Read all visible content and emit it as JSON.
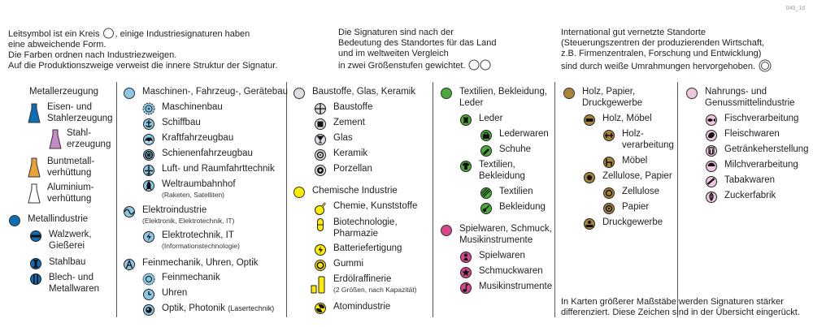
{
  "code": "040_1d",
  "intro": {
    "left": [
      "Leitsymbol ist ein Kreis",
      "eine abweichende Form.",
      "Die Farben ordnen nach Industriezweigen.",
      "Auf die Produktionszweige verweist die innere Struktur der Signatur."
    ],
    "left_tail": ", einige Industriesignaturen haben",
    "middle": [
      "Die Signaturen sind nach der",
      "Bedeutung des Standortes für das Land",
      "und im weltweiten Vergleich",
      "in zwei Größenstufen gewichtet."
    ],
    "right": [
      "International gut vernetzte Standorte",
      "(Steuerungszentren der produzierenden Wirtschaft,",
      "z.B. Firmenzentralen, Forschung und Entwicklung)",
      "sind durch weiße Umrahmungen hervorgehoben."
    ]
  },
  "colors": {
    "metal": "#0f6db3",
    "machine": "#8cc8e6",
    "building": "#dcdce2",
    "chemical": "#ffec00",
    "textile": "#4daa3a",
    "toys": "#d6478c",
    "wood": "#a8843a",
    "food": "#efc6dd",
    "frame": "#6a6a6a"
  },
  "groups": [
    {
      "title": [
        "Metallerzeugung"
      ],
      "items": [
        {
          "label": [
            "Eisen- und",
            "Stahlerzeugung"
          ],
          "icon": "flask-blue-icon"
        },
        {
          "label": [
            "Stahl-",
            "erzeugung"
          ],
          "icon": "flask-pink-icon"
        },
        {
          "label": [
            "Buntmetall-",
            "verhüttung"
          ],
          "icon": "flask-orange-icon"
        },
        {
          "label": [
            "Aluminium-",
            "verhüttung"
          ],
          "icon": "flask-white-icon"
        }
      ]
    },
    {
      "title": [
        "Metallindustrie"
      ],
      "icon": "circle-blue-icon",
      "items": [
        {
          "label": [
            "Walzwerk,",
            "Gießerei"
          ],
          "icon": "rolling-mill-icon"
        },
        {
          "label": [
            "Stahlbau"
          ],
          "icon": "steel-construction-icon"
        },
        {
          "label": [
            "Blech- und",
            "Metallwaren"
          ],
          "icon": "sheet-metal-icon"
        }
      ]
    },
    {
      "title": [
        "Maschinen-, Fahrzeug-, Gerätebau"
      ],
      "icon": "circle-lightblue-icon",
      "items": [
        {
          "label": [
            "Maschinenbau"
          ],
          "icon": "gear-icon"
        },
        {
          "label": [
            "Schiffbau"
          ],
          "icon": "anchor-icon"
        },
        {
          "label": [
            "Kraftfahrzeugbau"
          ],
          "icon": "car-icon"
        },
        {
          "label": [
            "Schienenfahrzeugbau"
          ],
          "icon": "rail-wheel-icon"
        },
        {
          "label": [
            "Luft- und Raumfahrttechnik"
          ],
          "icon": "airplane-icon"
        },
        {
          "label": [
            "Weltraumbahnhof"
          ],
          "sub": "(Raketen, Satelliten)",
          "icon": "rocket-icon"
        }
      ]
    },
    {
      "title": [
        "Elektroindustrie"
      ],
      "sub": "(Elektronik, Elektrotechnik, IT)",
      "icon": "sine-wave-icon",
      "items": [
        {
          "label": [
            "Elektrotechnik, IT"
          ],
          "sub": "(Informationstechnologie)",
          "icon": "lightning-icon"
        }
      ]
    },
    {
      "title": [
        "Feinmechanik, Uhren, Optik"
      ],
      "icon": "compass-icon",
      "items": [
        {
          "label": [
            "Feinmechanik"
          ],
          "icon": "dial-icon"
        },
        {
          "label": [
            "Uhren"
          ],
          "icon": "clock-icon"
        },
        {
          "label": [
            "Optik, Photonik"
          ],
          "tail": "(Lasertechnik)",
          "icon": "lens-icon"
        }
      ]
    },
    {
      "title": [
        "Baustoffe, Glas, Keramik"
      ],
      "icon": "circle-gray-icon",
      "items": [
        {
          "label": [
            "Baustoffe"
          ],
          "icon": "brick-cross-icon"
        },
        {
          "label": [
            "Zement"
          ],
          "icon": "cement-icon"
        },
        {
          "label": [
            "Glas"
          ],
          "icon": "glass-icon"
        },
        {
          "label": [
            "Keramik"
          ],
          "icon": "ceramic-icon"
        },
        {
          "label": [
            "Porzellan"
          ],
          "icon": "porcelain-icon"
        }
      ]
    },
    {
      "title": [
        "Chemische Industrie"
      ],
      "icon": "circle-yellow-icon",
      "items": [
        {
          "label": [
            "Chemie, Kunststoffe"
          ],
          "icon": "retort-icon"
        },
        {
          "label": [
            "Biotechnologie,",
            "Pharmazie"
          ],
          "icon": "capsule-icon"
        },
        {
          "label": [
            "Batteriefertigung"
          ],
          "icon": "battery-icon"
        },
        {
          "label": [
            "Gummi"
          ],
          "icon": "rubber-icon"
        },
        {
          "label": [
            "Erdölraffinerie"
          ],
          "sub": "(2 Größen, nach Kapazität)",
          "icon": "refinery-icon"
        },
        {
          "label": [
            "Atomindustrie"
          ],
          "icon": "radiation-icon"
        }
      ]
    },
    {
      "title": [
        "Textilien, Bekleidung,",
        "Leder"
      ],
      "icon": "circle-green-icon",
      "items": [
        {
          "label": [
            "Leder"
          ],
          "icon": "leather-icon"
        },
        {
          "label": [
            "Lederwaren"
          ],
          "icon": "bag-icon"
        },
        {
          "label": [
            "Schuhe"
          ],
          "icon": "shoe-icon"
        },
        {
          "label": [
            "Textilien,",
            "Bekleidung"
          ],
          "icon": "shirt-icon"
        },
        {
          "label": [
            "Textilien"
          ],
          "icon": "fabric-icon"
        },
        {
          "label": [
            "Bekleidung"
          ],
          "icon": "button-icon"
        }
      ]
    },
    {
      "title": [
        "Spielwaren, Schmuck,",
        "Musikinstrumente"
      ],
      "icon": "circle-magenta-icon",
      "items": [
        {
          "label": [
            "Spielwaren"
          ],
          "icon": "toy-icon"
        },
        {
          "label": [
            "Schmuckwaren"
          ],
          "icon": "jewel-icon"
        },
        {
          "label": [
            "Musikinstrumente"
          ],
          "icon": "note-icon"
        }
      ]
    },
    {
      "title": [
        "Holz, Papier,",
        "Druckgewerbe"
      ],
      "icon": "circle-brown-icon",
      "items": [
        {
          "label": [
            "Holz, Möbel"
          ],
          "icon": "log-icon"
        },
        {
          "label": [
            "Holz-",
            "verarbeitung"
          ],
          "icon": "wood-processing-icon"
        },
        {
          "label": [
            "Möbel"
          ],
          "icon": "furniture-icon"
        },
        {
          "label": [
            "Zellulose, Papier"
          ],
          "icon": "paper-roll-icon"
        },
        {
          "label": [
            "Zellulose"
          ],
          "icon": "cellulose-icon"
        },
        {
          "label": [
            "Papier"
          ],
          "icon": "paper-icon"
        },
        {
          "label": [
            "Druckgewerbe"
          ],
          "icon": "printing-icon"
        }
      ]
    },
    {
      "title": [
        "Nahrungs- und",
        "Genussmittelindustrie"
      ],
      "icon": "circle-pink-icon",
      "items": [
        {
          "label": [
            "Fischverarbeitung"
          ],
          "icon": "fish-icon"
        },
        {
          "label": [
            "Fleischwaren"
          ],
          "icon": "meat-icon"
        },
        {
          "label": [
            "Getränkeherstellung"
          ],
          "icon": "drink-icon"
        },
        {
          "label": [
            "Milchverarbeitung"
          ],
          "icon": "milk-icon"
        },
        {
          "label": [
            "Tabakwaren"
          ],
          "icon": "tobacco-icon"
        },
        {
          "label": [
            "Zuckerfabrik"
          ],
          "icon": "sugar-icon"
        }
      ]
    }
  ],
  "footer": [
    "In Karten größerer Maßstäbe werden Signaturen stärker",
    "differenziert. Diese Zeichen sind in der Übersicht eingerückt."
  ]
}
